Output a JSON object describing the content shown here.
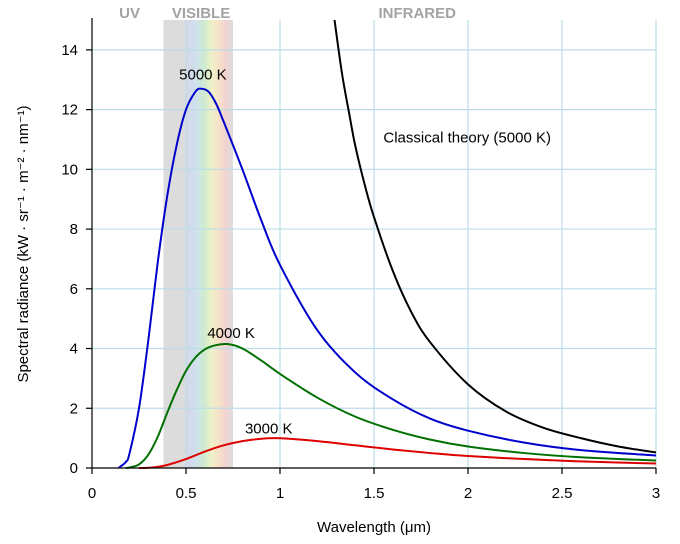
{
  "chart_data": {
    "type": "line",
    "title": "",
    "xlabel": "Wavelength (μm)",
    "ylabel": "Spectral radiance (kW · sr⁻¹ · m⁻² · nm⁻¹)",
    "xlim": [
      0,
      3
    ],
    "ylim": [
      0,
      15
    ],
    "grid": true,
    "x_ticks": [
      {
        "value": 0,
        "label": "0"
      },
      {
        "value": 0.5,
        "label": "0.5"
      },
      {
        "value": 1,
        "label": "1"
      },
      {
        "value": 1.5,
        "label": "1.5"
      },
      {
        "value": 2,
        "label": "2"
      },
      {
        "value": 2.5,
        "label": "2.5"
      },
      {
        "value": 3,
        "label": "3"
      }
    ],
    "y_ticks": [
      {
        "value": 0,
        "label": "0"
      },
      {
        "value": 2,
        "label": "2"
      },
      {
        "value": 4,
        "label": "4"
      },
      {
        "value": 6,
        "label": "6"
      },
      {
        "value": 8,
        "label": "8"
      },
      {
        "value": 10,
        "label": "10"
      },
      {
        "value": 12,
        "label": "12"
      },
      {
        "value": 14,
        "label": "14"
      }
    ],
    "regions": [
      {
        "label": "UV",
        "x": 0.2
      },
      {
        "label": "VISIBLE",
        "x": 0.58
      },
      {
        "label": "INFRARED",
        "x": 1.73
      }
    ],
    "visible_band": {
      "from": 0.38,
      "to": 0.75
    },
    "series": [
      {
        "name": "5000 K",
        "color": "#0000cc",
        "label_at": [
          0.59,
          13.0
        ],
        "x": [
          0.14,
          0.18,
          0.2,
          0.25,
          0.3,
          0.35,
          0.4,
          0.45,
          0.5,
          0.55,
          0.58,
          0.62,
          0.66,
          0.7,
          0.8,
          0.9,
          1.0,
          1.2,
          1.4,
          1.6,
          1.8,
          2.0,
          2.3,
          2.6,
          3.0
        ],
        "y": [
          0.0,
          0.2,
          0.5,
          2.0,
          4.3,
          6.9,
          9.1,
          10.8,
          12.0,
          12.6,
          12.7,
          12.6,
          12.2,
          11.6,
          10.0,
          8.3,
          6.8,
          4.6,
          3.2,
          2.3,
          1.65,
          1.25,
          0.85,
          0.6,
          0.42
        ]
      },
      {
        "name": "4000 K",
        "color": "#007000",
        "label_at": [
          0.74,
          4.35
        ],
        "x": [
          0.18,
          0.2,
          0.25,
          0.3,
          0.35,
          0.4,
          0.45,
          0.5,
          0.55,
          0.6,
          0.65,
          0.72,
          0.8,
          0.9,
          1.0,
          1.2,
          1.4,
          1.6,
          1.8,
          2.0,
          2.3,
          2.6,
          3.0
        ],
        "y": [
          0.0,
          0.02,
          0.12,
          0.45,
          1.05,
          1.85,
          2.6,
          3.25,
          3.7,
          3.97,
          4.1,
          4.15,
          4.0,
          3.6,
          3.15,
          2.35,
          1.72,
          1.28,
          0.95,
          0.72,
          0.5,
          0.36,
          0.25
        ]
      },
      {
        "name": "3000 K",
        "color": "#dd0000",
        "label_at": [
          0.94,
          1.15
        ],
        "x": [
          0.25,
          0.3,
          0.35,
          0.4,
          0.5,
          0.6,
          0.7,
          0.8,
          0.9,
          0.97,
          1.05,
          1.2,
          1.4,
          1.6,
          1.8,
          2.0,
          2.3,
          2.6,
          3.0
        ],
        "y": [
          0.0,
          0.01,
          0.04,
          0.1,
          0.3,
          0.55,
          0.76,
          0.9,
          0.98,
          1.0,
          0.98,
          0.9,
          0.76,
          0.62,
          0.5,
          0.4,
          0.3,
          0.22,
          0.15
        ]
      },
      {
        "name": "Classical theory (5000 K)",
        "color": "#000000",
        "label_at": [
          1.55,
          10.9
        ],
        "x": [
          1.29,
          1.33,
          1.37,
          1.4,
          1.45,
          1.5,
          1.6,
          1.7,
          1.8,
          2.0,
          2.2,
          2.4,
          2.6,
          2.8,
          3.0
        ],
        "y": [
          15.0,
          13.2,
          11.8,
          10.8,
          9.5,
          8.4,
          6.6,
          5.2,
          4.2,
          2.8,
          1.9,
          1.35,
          1.0,
          0.72,
          0.52
        ]
      }
    ]
  }
}
